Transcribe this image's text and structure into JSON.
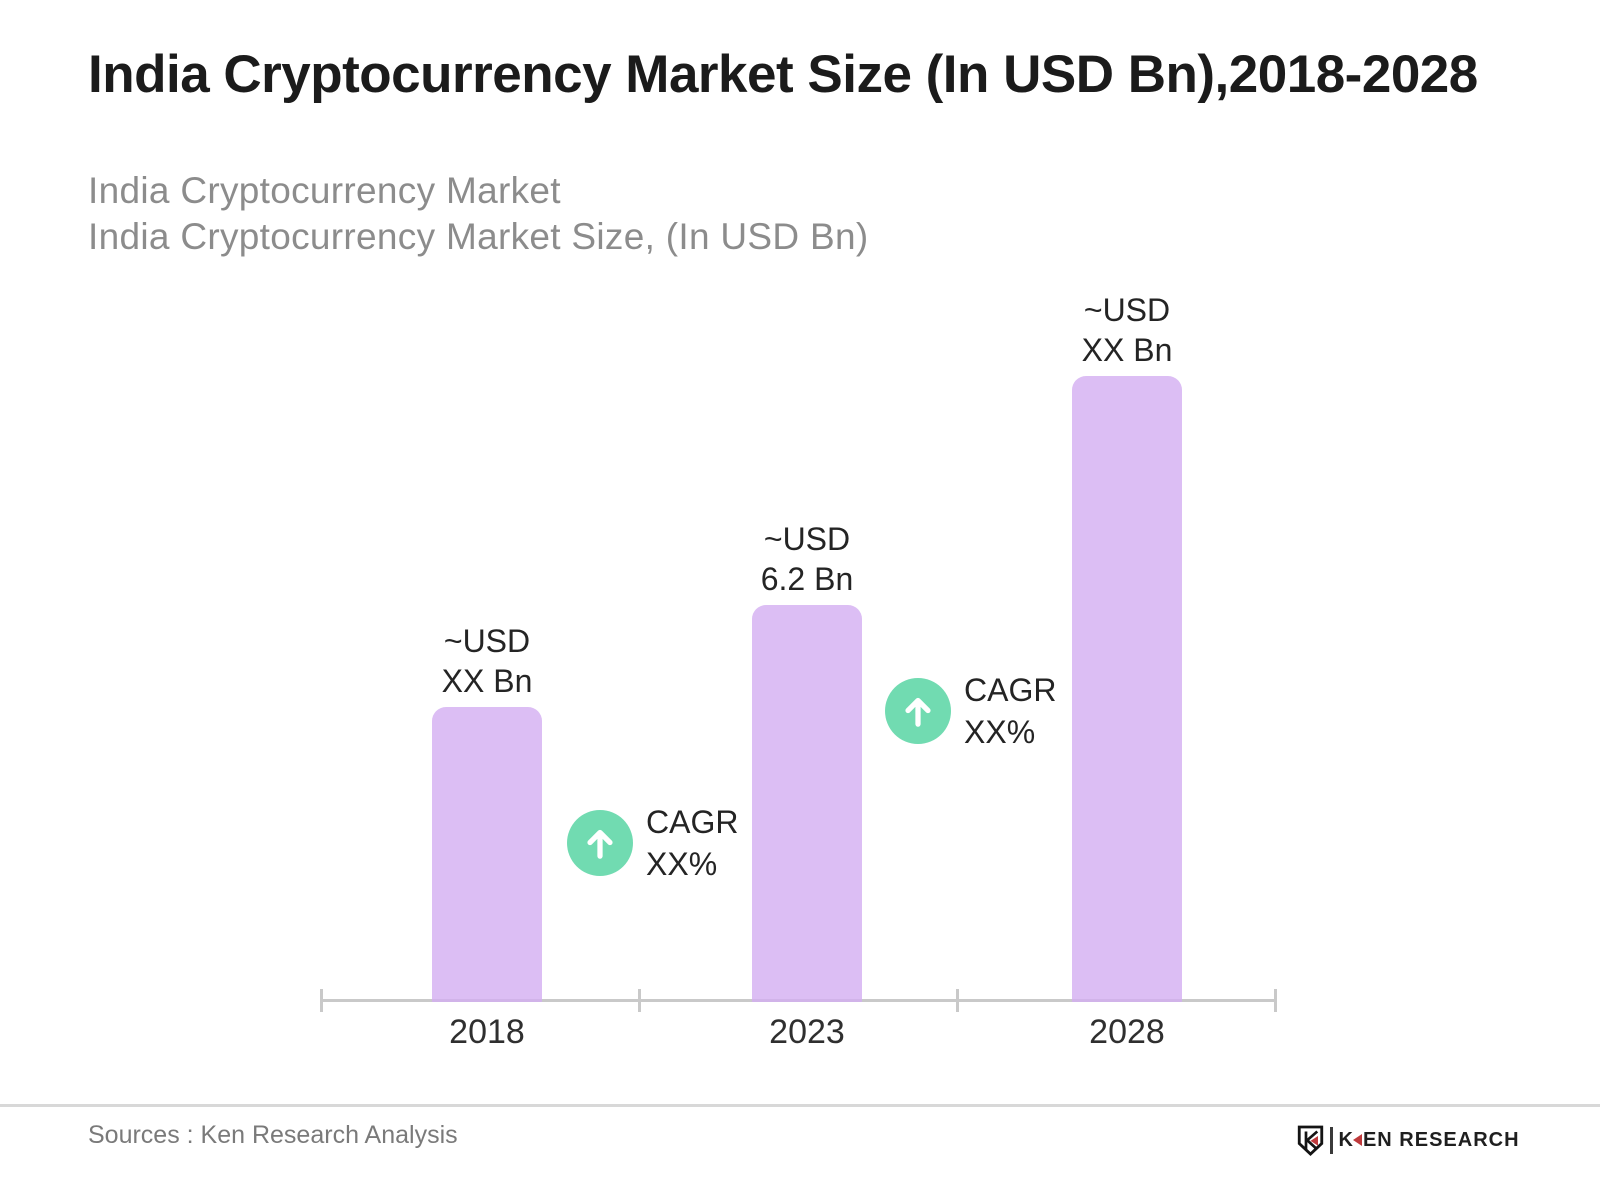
{
  "title": "India Cryptocurrency Market Size (In USD Bn),2018-2028",
  "subtitle": {
    "line1": "India Cryptocurrency Market",
    "line2": "India Cryptocurrency Market Size, (In USD Bn)"
  },
  "cagr_badges": [
    {
      "line1": "CAGR",
      "line2": "XX%"
    },
    {
      "line1": "CAGR",
      "line2": "XX%"
    }
  ],
  "source_note": "Sources : Ken Research Analysis",
  "logo": {
    "icon": "ken-research-shield-k-icon",
    "brand_k": "K",
    "brand_rest": "EN RESEARCH"
  },
  "colors": {
    "bar": "#dcbef4",
    "cagr_circle": "#71dbb1",
    "axis": "#c9c9c9",
    "divider": "#d8d8d8",
    "title_text": "#1b1b1b",
    "subtitle_text": "#8c8c8c",
    "label_text": "#242424",
    "source_text": "#7a7a7a",
    "logo_red": "#bf3a3c"
  },
  "chart_data": {
    "type": "bar",
    "title": "India Cryptocurrency Market Size, (In USD Bn)",
    "categories": [
      "2018",
      "2023",
      "2028"
    ],
    "values": [
      4.6,
      6.2,
      9.8
    ],
    "values_note": "2018 and 2028 values are masked as XX in the image; estimated from bar heights relative to 2023 = 6.2",
    "bar_labels": [
      [
        "~USD",
        "XX Bn"
      ],
      [
        "~USD",
        "6.2 Bn"
      ],
      [
        "~USD",
        "XX Bn"
      ]
    ],
    "ylim": [
      0,
      10.5
    ],
    "grid": false,
    "legend": false
  }
}
